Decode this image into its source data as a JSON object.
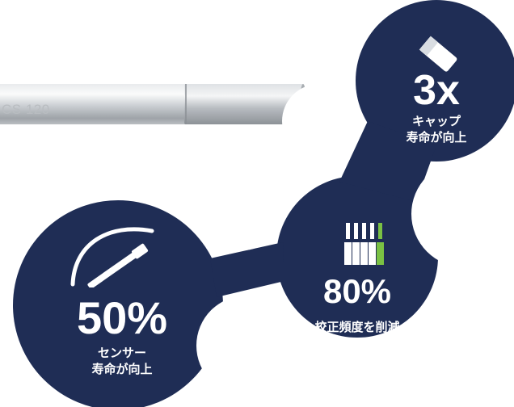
{
  "rod": {
    "engraving": "CS 120"
  },
  "badges": [
    {
      "id": "cap",
      "value": "3x",
      "caption": [
        "キャップ",
        "寿命が向上"
      ],
      "icon": "cap-icon"
    },
    {
      "id": "calibration",
      "value": "80%",
      "caption": [
        "校正頻度を削減"
      ],
      "icon": "calibration-bars-icon"
    },
    {
      "id": "sensor",
      "value": "50%",
      "caption": [
        "センサー",
        "寿命が向上"
      ],
      "icon": "sensor-probe-icon"
    }
  ],
  "colors": {
    "navy": "#1f2d55",
    "accent_green": "#7ac143",
    "white": "#ffffff",
    "steel": "#c8ccd0"
  }
}
